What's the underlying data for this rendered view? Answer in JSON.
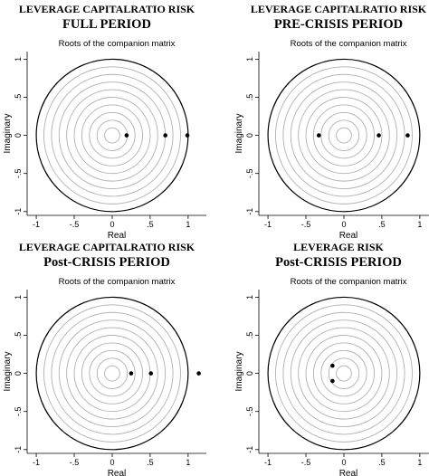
{
  "chart_data": [
    {
      "type": "scatter",
      "header": [
        "LEVERAGE CAPITALRATIO RISK",
        "FULL PERIOD"
      ],
      "title": "Roots of the companion matrix",
      "xlabel": "Real",
      "ylabel": "Imaginary",
      "x": [
        0.19,
        0.7,
        0.99
      ],
      "y": [
        0,
        0,
        0
      ],
      "color": "#000000",
      "xlim": [
        -1.12,
        1.24
      ],
      "ylim": [
        -1.05,
        1.1
      ],
      "xticks": [
        -1,
        {
          "value": -0.5,
          "label": "-.5"
        },
        0,
        {
          "value": 0.5,
          "label": ".5"
        },
        1
      ],
      "yticks": [
        -1,
        {
          "value": -0.5,
          "label": "-.5"
        },
        0,
        {
          "value": 0.5,
          "label": ".5"
        },
        1
      ]
    },
    {
      "type": "scatter",
      "header": [
        "LEVERAGE CAPITALRATIO RISK",
        "PRE-CRISIS PERIOD"
      ],
      "title": "Roots of the companion matrix",
      "xlabel": "Real",
      "ylabel": "Imaginary",
      "x": [
        -0.33,
        0.46,
        0.84
      ],
      "y": [
        0,
        0,
        0
      ],
      "color": "#000000",
      "xlim": [
        -1.12,
        1.24
      ],
      "ylim": [
        -1.05,
        1.1
      ],
      "xticks": [
        -1,
        {
          "value": -0.5,
          "label": "-.5"
        },
        0,
        {
          "value": 0.5,
          "label": ".5"
        },
        1
      ],
      "yticks": [
        -1,
        {
          "value": -0.5,
          "label": "-.5"
        },
        0,
        {
          "value": 0.5,
          "label": ".5"
        },
        1
      ]
    },
    {
      "type": "scatter",
      "header": [
        "LEVERAGE CAPITALRATIO RISK",
        "Post-CRISIS PERIOD"
      ],
      "title": "Roots of the companion matrix",
      "xlabel": "Real",
      "ylabel": "Imaginary",
      "x": [
        0.25,
        0.51,
        1.14
      ],
      "y": [
        0,
        0,
        0
      ],
      "color": "#000000",
      "xlim": [
        -1.12,
        1.24
      ],
      "ylim": [
        -1.05,
        1.1
      ],
      "xticks": [
        -1,
        {
          "value": -0.5,
          "label": "-.5"
        },
        0,
        {
          "value": 0.5,
          "label": ".5"
        },
        1
      ],
      "yticks": [
        -1,
        {
          "value": -0.5,
          "label": "-.5"
        },
        0,
        {
          "value": 0.5,
          "label": ".5"
        },
        1
      ]
    },
    {
      "type": "scatter",
      "header": [
        "LEVERAGE RISK",
        "Post-CRISIS PERIOD"
      ],
      "title": "Roots of the companion matrix",
      "xlabel": "Real",
      "ylabel": "Imaginary",
      "x": [
        -0.15,
        -0.15
      ],
      "y": [
        0.1,
        -0.1
      ],
      "color": "#000000",
      "xlim": [
        -1.12,
        1.24
      ],
      "ylim": [
        -1.05,
        1.1
      ],
      "xticks": [
        -1,
        {
          "value": -0.5,
          "label": "-.5"
        },
        0,
        {
          "value": 0.5,
          "label": ".5"
        },
        1
      ],
      "yticks": [
        -1,
        {
          "value": -0.5,
          "label": "-.5"
        },
        0,
        {
          "value": 0.5,
          "label": ".5"
        },
        1
      ]
    }
  ]
}
